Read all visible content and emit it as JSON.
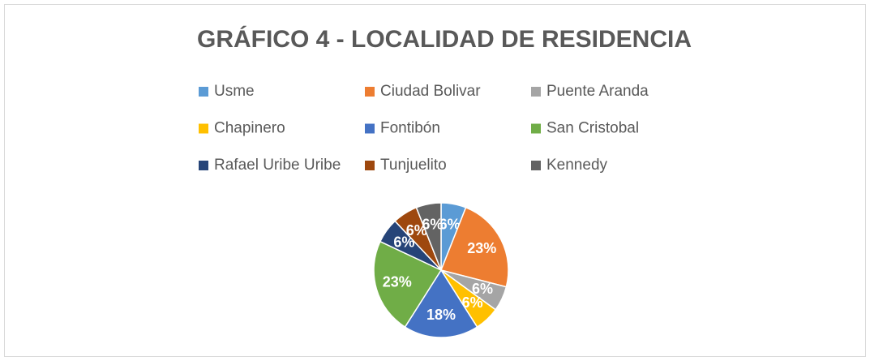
{
  "chart_data": {
    "type": "pie",
    "title": "GRÁFICO 4 - LOCALIDAD DE RESIDENCIA",
    "categories": [
      "Usme",
      "Ciudad Bolivar",
      "Puente Aranda",
      "Chapinero",
      "Fontibón",
      "San Cristobal",
      "Rafael Uribe Uribe",
      "Tunjuelito",
      "Kennedy"
    ],
    "values": [
      6,
      23,
      6,
      6,
      18,
      23,
      6,
      6,
      6
    ],
    "value_labels": [
      "6%",
      "23%",
      "6%",
      "6%",
      "18%",
      "23%",
      "6%",
      "6%",
      "6%"
    ],
    "colors": [
      "#5b9bd5",
      "#ed7d31",
      "#a5a5a5",
      "#ffc000",
      "#4472c4",
      "#70ad47",
      "#264478",
      "#9e480e",
      "#636363"
    ],
    "legend": "top"
  }
}
